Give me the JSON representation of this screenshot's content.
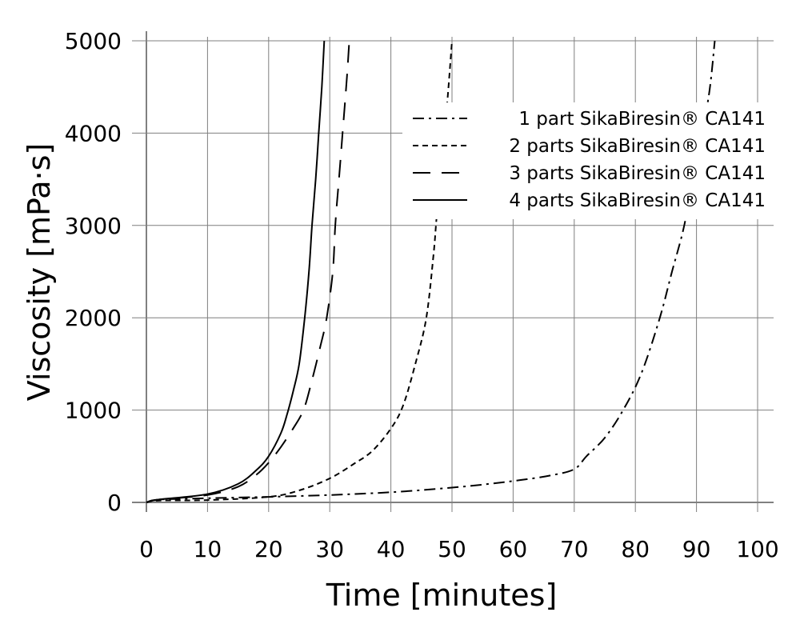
{
  "chart_data": {
    "type": "line",
    "title": "",
    "xlabel": "Time [minutes]",
    "ylabel": "Viscosity [mPa·s]",
    "xlim": [
      0,
      100
    ],
    "ylim": [
      0,
      5000
    ],
    "x_ticks": [
      0,
      10,
      20,
      30,
      40,
      50,
      60,
      70,
      80,
      90,
      100
    ],
    "y_ticks": [
      0,
      1000,
      2000,
      3000,
      4000,
      5000
    ],
    "grid": true,
    "legend_position": "upper right",
    "series": [
      {
        "name": "1 part SikaBiresin® CA141",
        "style": "dash-dot",
        "points": [
          [
            0,
            0
          ],
          [
            2,
            30
          ],
          [
            10,
            45
          ],
          [
            20,
            60
          ],
          [
            30,
            80
          ],
          [
            40,
            110
          ],
          [
            50,
            160
          ],
          [
            56,
            200
          ],
          [
            61,
            240
          ],
          [
            66,
            290
          ],
          [
            70,
            360
          ],
          [
            72,
            500
          ],
          [
            75,
            700
          ],
          [
            78,
            1000
          ],
          [
            81,
            1400
          ],
          [
            84,
            2000
          ],
          [
            86,
            2500
          ],
          [
            88,
            3000
          ],
          [
            90,
            3700
          ],
          [
            92,
            4400
          ],
          [
            93,
            5000
          ]
        ]
      },
      {
        "name": "2 parts SikaBiresin® CA141",
        "style": "short-dash",
        "points": [
          [
            0,
            0
          ],
          [
            2,
            20
          ],
          [
            10,
            25
          ],
          [
            20,
            60
          ],
          [
            25,
            130
          ],
          [
            30,
            260
          ],
          [
            34,
            420
          ],
          [
            37,
            560
          ],
          [
            40,
            800
          ],
          [
            42,
            1050
          ],
          [
            44,
            1500
          ],
          [
            45.8,
            2000
          ],
          [
            47,
            2700
          ],
          [
            47.5,
            3100
          ],
          [
            48.5,
            3800
          ],
          [
            49.3,
            4400
          ],
          [
            50,
            5000
          ]
        ]
      },
      {
        "name": "3 parts SikaBiresin® CA141",
        "style": "long-dash",
        "points": [
          [
            0,
            0
          ],
          [
            2,
            30
          ],
          [
            10,
            80
          ],
          [
            15,
            170
          ],
          [
            18,
            300
          ],
          [
            20,
            430
          ],
          [
            22,
            600
          ],
          [
            24,
            800
          ],
          [
            25.7,
            1000
          ],
          [
            27,
            1300
          ],
          [
            28.5,
            1700
          ],
          [
            29.5,
            2000
          ],
          [
            30.5,
            2500
          ],
          [
            30.9,
            3000
          ],
          [
            31.5,
            3500
          ],
          [
            32.1,
            4000
          ],
          [
            32.8,
            4600
          ],
          [
            33.2,
            5000
          ]
        ]
      },
      {
        "name": "4 parts SikaBiresin® CA141",
        "style": "solid",
        "points": [
          [
            0,
            0
          ],
          [
            2,
            30
          ],
          [
            10,
            90
          ],
          [
            15,
            200
          ],
          [
            18,
            350
          ],
          [
            20,
            500
          ],
          [
            22,
            750
          ],
          [
            23,
            950
          ],
          [
            24,
            1200
          ],
          [
            25,
            1500
          ],
          [
            25.9,
            2000
          ],
          [
            26.6,
            2500
          ],
          [
            27.1,
            3000
          ],
          [
            27.7,
            3500
          ],
          [
            28.2,
            4000
          ],
          [
            28.7,
            4500
          ],
          [
            29.1,
            5000
          ]
        ]
      }
    ]
  },
  "axes": {
    "x_tick_labels": [
      "0",
      "10",
      "20",
      "30",
      "40",
      "50",
      "60",
      "70",
      "80",
      "90",
      "100"
    ],
    "y_tick_labels": [
      "0",
      "1000",
      "2000",
      "3000",
      "4000",
      "5000"
    ],
    "x_title": "Time [minutes]",
    "y_title": "Viscosity [mPa·s]"
  },
  "legend": {
    "items": [
      {
        "label": "1 part SikaBiresin® CA141",
        "dash": "14 6 3 6"
      },
      {
        "label": "2 parts SikaBiresin® CA141",
        "dash": "7 5"
      },
      {
        "label": "3 parts SikaBiresin® CA141",
        "dash": "22 14"
      },
      {
        "label": "4 parts SikaBiresin® CA141",
        "dash": ""
      }
    ]
  },
  "colors": {
    "grid": "#7f7f7f",
    "axis": "#808080",
    "line": "#000000",
    "background": "#ffffff"
  }
}
